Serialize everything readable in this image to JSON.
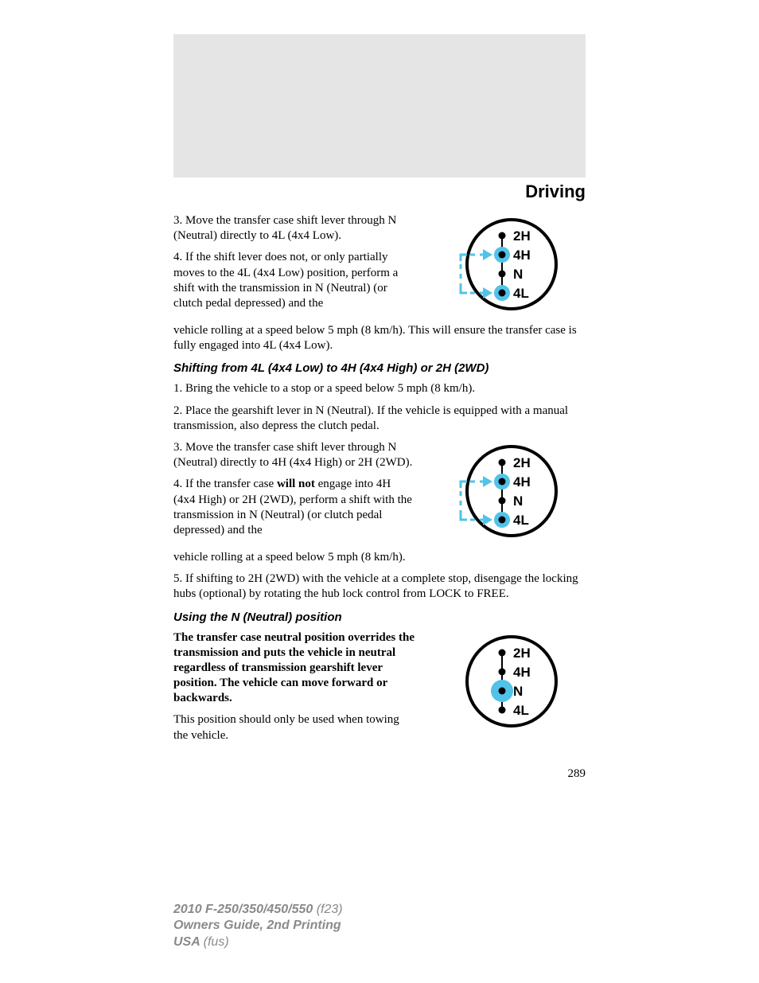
{
  "section_title": "Driving",
  "page_number": "289",
  "para1": "3. Move the transfer case shift lever through N (Neutral) directly to 4L (4x4 Low).",
  "para2a": "4. If the shift lever does not, or only partially moves to the 4L (4x4 Low) position, perform a shift with the transmission in N (Neutral) (or clutch pedal depressed) and the ",
  "para2b": "vehicle rolling at a speed below 5 mph (8 km/h). This will ensure the transfer case is fully engaged into 4L (4x4 Low).",
  "sub1": "Shifting from 4L (4x4 Low) to 4H (4x4 High) or 2H (2WD)",
  "para3": "1. Bring the vehicle to a stop or a speed below 5 mph (8 km/h).",
  "para4": "2. Place the gearshift lever in N (Neutral). If the vehicle is equipped with a manual transmission, also depress the clutch pedal.",
  "para5": "3. Move the transfer case shift lever through N (Neutral) directly to 4H (4x4 High) or 2H (2WD).",
  "para6a": "4. If the transfer case ",
  "para6b": "will not",
  "para6c": " engage into 4H (4x4 High) or 2H (2WD), perform a shift with the transmission in N (Neutral) (or clutch pedal depressed) and the ",
  "para6d": "vehicle rolling at a speed below 5 mph (8 km/h).",
  "para7": "5. If shifting to 2H (2WD) with the vehicle at a complete stop, disengage the locking hubs (optional) by rotating the hub lock control from LOCK to FREE.",
  "sub2": "Using the N (Neutral) position",
  "para8": "The transfer case neutral position overrides the transmission and puts the vehicle in neutral regardless of transmission gearshift lever position. The vehicle can move forward or backwards.",
  "para9": "This position should only be used when towing the vehicle.",
  "footer1a": "2010 F-250/350/450/550 ",
  "footer1b": "(f23)",
  "footer2": "Owners Guide, 2nd Printing",
  "footer3a": "USA ",
  "footer3b": "(fus)",
  "diagram": {
    "circle_stroke": "#000000",
    "circle_fill": "#ffffff",
    "circle_stroke_width": 4,
    "line_color": "#000000",
    "dot_fill": "#000000",
    "halo_fill": "#51c3e8",
    "halo_r": 10,
    "dot_r": 4.5,
    "arrow_color": "#51c3e8",
    "arrow_dash": "6,6",
    "label_font": "Arial, Helvetica, sans-serif",
    "label_size": 17,
    "label_weight": "bold",
    "labels": [
      "2H",
      "4H",
      "N",
      "4L"
    ],
    "positions_y": [
      28,
      52,
      76,
      100
    ]
  }
}
